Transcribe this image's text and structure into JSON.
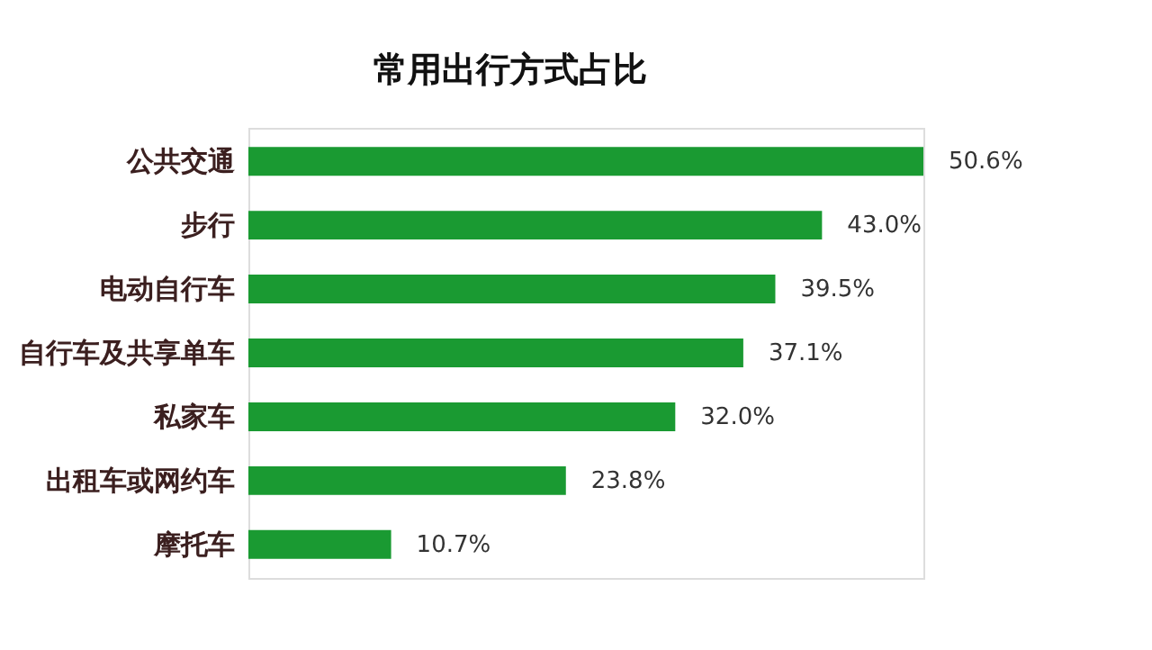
{
  "chart_data": {
    "type": "bar",
    "orientation": "horizontal",
    "title": "常用出行方式占比",
    "categories": [
      "公共交通",
      "步行",
      "电动自行车",
      "自行车及共享单车",
      "私家车",
      "出租车或网约车",
      "摩托车"
    ],
    "values": [
      50.6,
      43.0,
      39.5,
      37.1,
      32.0,
      23.8,
      10.7
    ],
    "value_labels": [
      "50.6%",
      "43.0%",
      "39.5%",
      "37.1%",
      "32.0%",
      "23.8%",
      "10.7%"
    ],
    "color": "#1a9a32",
    "grid": false
  }
}
